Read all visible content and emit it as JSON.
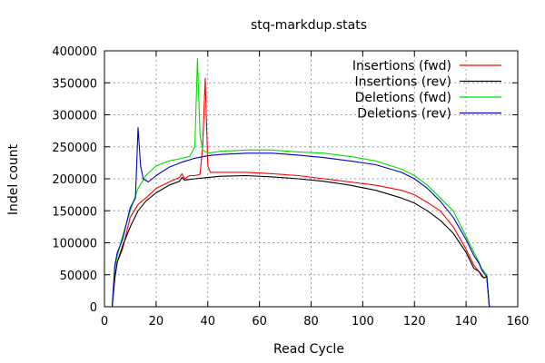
{
  "chart_data": {
    "type": "line",
    "title": "stq-markdup.stats",
    "xlabel": "Read Cycle",
    "ylabel": "Indel count",
    "xlim": [
      0,
      160
    ],
    "ylim": [
      0,
      400000
    ],
    "xticks": [
      0,
      20,
      40,
      60,
      80,
      100,
      120,
      140,
      160
    ],
    "yticks": [
      0,
      50000,
      100000,
      150000,
      200000,
      250000,
      300000,
      350000,
      400000
    ],
    "grid": true,
    "legend_position": "top-right",
    "series": [
      {
        "name": "Insertions (fwd)",
        "color": "#ff0000",
        "x": [
          3,
          4,
          5,
          7,
          10,
          13,
          16,
          20,
          25,
          29,
          30,
          31,
          33,
          35,
          37,
          38,
          39,
          40,
          41,
          45,
          55,
          65,
          75,
          85,
          95,
          105,
          115,
          120,
          125,
          130,
          135,
          140,
          143,
          145,
          146,
          147,
          148,
          149
        ],
        "y": [
          0,
          45000,
          70000,
          90000,
          140000,
          160000,
          170000,
          185000,
          195000,
          202000,
          208000,
          200000,
          205000,
          205000,
          207000,
          250000,
          357000,
          220000,
          210000,
          210000,
          210000,
          208000,
          205000,
          200000,
          195000,
          190000,
          182000,
          175000,
          163000,
          150000,
          125000,
          90000,
          65000,
          55000,
          50000,
          45000,
          48000,
          0
        ]
      },
      {
        "name": "Insertions (rev)",
        "color": "#000000",
        "x": [
          3,
          4,
          5,
          7,
          10,
          13,
          16,
          20,
          25,
          29,
          30,
          31,
          35,
          40,
          45,
          55,
          65,
          75,
          85,
          95,
          105,
          115,
          120,
          125,
          130,
          135,
          140,
          143,
          145,
          146,
          147,
          148,
          149
        ],
        "y": [
          0,
          45000,
          70000,
          95000,
          125000,
          150000,
          165000,
          178000,
          190000,
          196000,
          202000,
          198000,
          200000,
          202000,
          204000,
          205000,
          203000,
          200000,
          196000,
          190000,
          182000,
          170000,
          162000,
          150000,
          135000,
          115000,
          85000,
          60000,
          55000,
          48000,
          45000,
          47000,
          0
        ]
      },
      {
        "name": "Deletions (fwd)",
        "color": "#00dd00",
        "x": [
          3,
          4,
          5,
          7,
          10,
          13,
          16,
          20,
          25,
          30,
          33,
          35,
          36,
          37,
          38,
          40,
          45,
          55,
          65,
          75,
          85,
          95,
          105,
          115,
          120,
          125,
          130,
          135,
          140,
          143,
          145,
          146,
          147,
          148,
          149
        ],
        "y": [
          0,
          60000,
          80000,
          110000,
          150000,
          185000,
          205000,
          220000,
          228000,
          232000,
          235000,
          250000,
          388000,
          270000,
          245000,
          240000,
          243000,
          245000,
          245000,
          242000,
          240000,
          235000,
          228000,
          215000,
          205000,
          190000,
          170000,
          150000,
          110000,
          85000,
          70000,
          60000,
          55000,
          50000,
          0
        ]
      },
      {
        "name": "Deletions (rev)",
        "color": "#0000cc",
        "x": [
          3,
          4,
          5,
          7,
          10,
          12,
          13,
          14,
          15,
          17,
          20,
          25,
          30,
          35,
          40,
          45,
          55,
          65,
          75,
          85,
          95,
          105,
          115,
          120,
          125,
          130,
          135,
          140,
          143,
          145,
          146,
          147,
          148,
          149
        ],
        "y": [
          0,
          65000,
          85000,
          105000,
          155000,
          170000,
          280000,
          220000,
          200000,
          195000,
          205000,
          218000,
          226000,
          232000,
          236000,
          238000,
          240000,
          240000,
          237000,
          233000,
          228000,
          222000,
          210000,
          200000,
          185000,
          165000,
          140000,
          105000,
          80000,
          68000,
          58000,
          52000,
          47000,
          0
        ]
      }
    ]
  }
}
